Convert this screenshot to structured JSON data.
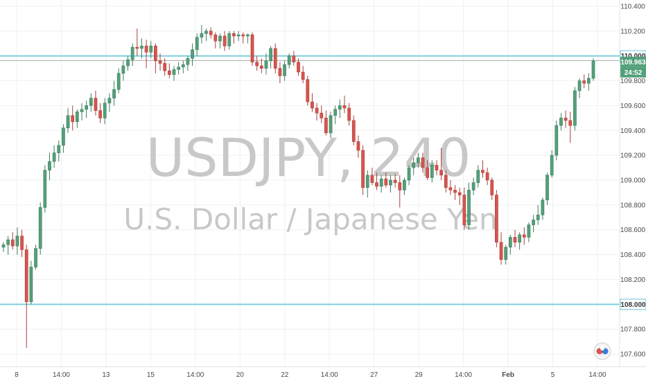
{
  "chart_data": {
    "type": "candlestick",
    "symbol": "USDJPY, 240",
    "description": "U.S. Dollar / Japanese Yen",
    "ylim": [
      107.5,
      110.45
    ],
    "y_ticks": [
      "110.400",
      "110.200",
      "110.000",
      "109.800",
      "109.600",
      "109.400",
      "109.200",
      "109.000",
      "108.800",
      "108.600",
      "108.400",
      "108.200",
      "108.000",
      "107.800",
      "107.600"
    ],
    "x_ticks": [
      "8",
      "14:00",
      "13",
      "15",
      "14:00",
      "20",
      "22",
      "14:00",
      "27",
      "29",
      "14:00",
      "Feb",
      "5",
      "14:00"
    ],
    "horizontal_lines": [
      110.0,
      108.0
    ],
    "last_price": "109.963",
    "countdown": "24:52",
    "level_labels": [
      "110.000",
      "108.000"
    ],
    "candles": [
      [
        108.46,
        108.5,
        108.42,
        108.48
      ],
      [
        108.48,
        108.55,
        108.4,
        108.52
      ],
      [
        108.52,
        108.58,
        108.44,
        108.47
      ],
      [
        108.47,
        108.62,
        108.4,
        108.55
      ],
      [
        108.55,
        108.6,
        108.38,
        108.44
      ],
      [
        108.44,
        108.48,
        107.65,
        108.02
      ],
      [
        108.02,
        108.35,
        108.0,
        108.3
      ],
      [
        108.3,
        108.48,
        108.28,
        108.45
      ],
      [
        108.45,
        108.82,
        108.4,
        108.78
      ],
      [
        108.78,
        109.12,
        108.74,
        109.08
      ],
      [
        109.08,
        109.22,
        109.0,
        109.15
      ],
      [
        109.15,
        109.28,
        109.1,
        109.22
      ],
      [
        109.22,
        109.32,
        109.15,
        109.28
      ],
      [
        109.28,
        109.45,
        109.22,
        109.42
      ],
      [
        109.42,
        109.58,
        109.38,
        109.52
      ],
      [
        109.52,
        109.6,
        109.4,
        109.47
      ],
      [
        109.47,
        109.57,
        109.42,
        109.55
      ],
      [
        109.55,
        109.62,
        109.48,
        109.57
      ],
      [
        109.57,
        109.64,
        109.5,
        109.6
      ],
      [
        109.6,
        109.7,
        109.55,
        109.66
      ],
      [
        109.66,
        109.72,
        109.52,
        109.56
      ],
      [
        109.56,
        109.62,
        109.46,
        109.5
      ],
      [
        109.5,
        109.66,
        109.45,
        109.62
      ],
      [
        109.62,
        109.7,
        109.55,
        109.66
      ],
      [
        109.66,
        109.8,
        109.6,
        109.73
      ],
      [
        109.73,
        109.9,
        109.7,
        109.86
      ],
      [
        109.86,
        109.96,
        109.8,
        109.92
      ],
      [
        109.92,
        110.0,
        109.88,
        109.97
      ],
      [
        109.97,
        110.1,
        109.92,
        110.07
      ],
      [
        110.07,
        110.22,
        110.0,
        110.06
      ],
      [
        110.06,
        110.14,
        109.98,
        110.08
      ],
      [
        110.08,
        110.13,
        109.9,
        110.03
      ],
      [
        110.03,
        110.12,
        109.98,
        110.08
      ],
      [
        110.08,
        110.1,
        109.86,
        109.96
      ],
      [
        109.96,
        110.02,
        109.88,
        109.94
      ],
      [
        109.94,
        109.98,
        109.84,
        109.88
      ],
      [
        109.88,
        109.94,
        109.82,
        109.85
      ],
      [
        109.85,
        109.92,
        109.8,
        109.89
      ],
      [
        109.89,
        109.95,
        109.85,
        109.91
      ],
      [
        109.91,
        109.96,
        109.86,
        109.93
      ],
      [
        109.93,
        110.0,
        109.88,
        109.98
      ],
      [
        109.98,
        110.1,
        109.92,
        110.05
      ],
      [
        110.05,
        110.18,
        110.0,
        110.15
      ],
      [
        110.15,
        110.25,
        110.1,
        110.18
      ],
      [
        110.18,
        110.22,
        110.12,
        110.2
      ],
      [
        110.2,
        110.23,
        110.14,
        110.17
      ],
      [
        110.17,
        110.19,
        110.06,
        110.12
      ],
      [
        110.12,
        110.18,
        110.06,
        110.16
      ],
      [
        110.16,
        110.2,
        110.04,
        110.08
      ],
      [
        110.08,
        110.2,
        110.05,
        110.18
      ],
      [
        110.18,
        110.2,
        110.1,
        110.16
      ],
      [
        110.16,
        110.2,
        110.12,
        110.17
      ],
      [
        110.17,
        110.19,
        110.1,
        110.16
      ],
      [
        110.16,
        110.18,
        110.1,
        110.17
      ],
      [
        110.17,
        110.19,
        109.92,
        109.95
      ],
      [
        109.95,
        110.0,
        109.88,
        109.92
      ],
      [
        109.92,
        109.98,
        109.86,
        109.9
      ],
      [
        109.9,
        110.02,
        109.85,
        109.96
      ],
      [
        109.96,
        110.08,
        109.9,
        110.06
      ],
      [
        110.06,
        110.1,
        109.86,
        109.9
      ],
      [
        109.9,
        109.95,
        109.78,
        109.84
      ],
      [
        109.84,
        109.96,
        109.8,
        109.93
      ],
      [
        109.93,
        110.02,
        109.9,
        110.0
      ],
      [
        110.0,
        110.04,
        109.92,
        109.95
      ],
      [
        109.95,
        109.98,
        109.84,
        109.87
      ],
      [
        109.87,
        109.92,
        109.78,
        109.81
      ],
      [
        109.81,
        109.84,
        109.6,
        109.63
      ],
      [
        109.63,
        109.7,
        109.55,
        109.58
      ],
      [
        109.58,
        109.62,
        109.48,
        109.54
      ],
      [
        109.54,
        109.6,
        109.46,
        109.5
      ],
      [
        109.5,
        109.56,
        109.36,
        109.38
      ],
      [
        109.38,
        109.55,
        109.34,
        109.52
      ],
      [
        109.52,
        109.6,
        109.45,
        109.57
      ],
      [
        109.57,
        109.65,
        109.5,
        109.6
      ],
      [
        109.6,
        109.68,
        109.54,
        109.58
      ],
      [
        109.58,
        109.62,
        109.44,
        109.48
      ],
      [
        109.48,
        109.52,
        109.28,
        109.31
      ],
      [
        109.31,
        109.36,
        109.18,
        109.24
      ],
      [
        109.24,
        109.28,
        108.88,
        108.94
      ],
      [
        108.94,
        109.08,
        108.86,
        109.04
      ],
      [
        109.04,
        109.1,
        108.96,
        108.98
      ],
      [
        108.98,
        109.06,
        108.92,
        108.95
      ],
      [
        108.95,
        109.04,
        108.9,
        109.01
      ],
      [
        109.01,
        109.06,
        108.94,
        108.96
      ],
      [
        108.96,
        109.04,
        108.9,
        109.0
      ],
      [
        109.0,
        109.05,
        108.94,
        108.98
      ],
      [
        108.98,
        109.04,
        108.78,
        108.92
      ],
      [
        108.92,
        109.02,
        108.88,
        109.0
      ],
      [
        109.0,
        109.12,
        108.96,
        109.1
      ],
      [
        109.1,
        109.18,
        109.04,
        109.14
      ],
      [
        109.14,
        109.22,
        109.1,
        109.18
      ],
      [
        109.18,
        109.22,
        109.06,
        109.1
      ],
      [
        109.1,
        109.16,
        109.0,
        109.02
      ],
      [
        109.02,
        109.16,
        108.98,
        109.12
      ],
      [
        109.12,
        109.16,
        109.04,
        109.08
      ],
      [
        109.08,
        109.26,
        109.0,
        109.04
      ],
      [
        109.04,
        109.08,
        108.9,
        108.94
      ],
      [
        108.94,
        109.0,
        108.88,
        108.92
      ],
      [
        108.92,
        108.96,
        108.84,
        108.9
      ],
      [
        108.9,
        108.94,
        108.8,
        108.88
      ],
      [
        108.88,
        108.94,
        108.6,
        108.64
      ],
      [
        108.64,
        108.98,
        108.6,
        108.92
      ],
      [
        108.92,
        109.02,
        108.88,
        108.98
      ],
      [
        108.98,
        109.12,
        108.94,
        109.08
      ],
      [
        109.08,
        109.16,
        109.02,
        109.06
      ],
      [
        109.06,
        109.1,
        108.96,
        109.0
      ],
      [
        109.0,
        109.02,
        108.84,
        108.88
      ],
      [
        108.88,
        108.92,
        108.46,
        108.5
      ],
      [
        108.5,
        108.58,
        108.32,
        108.36
      ],
      [
        108.36,
        108.48,
        108.32,
        108.46
      ],
      [
        108.46,
        108.56,
        108.4,
        108.54
      ],
      [
        108.54,
        108.6,
        108.46,
        108.5
      ],
      [
        108.5,
        108.58,
        108.44,
        108.56
      ],
      [
        108.56,
        108.62,
        108.48,
        108.54
      ],
      [
        108.54,
        108.66,
        108.5,
        108.64
      ],
      [
        108.64,
        108.72,
        108.58,
        108.68
      ],
      [
        108.68,
        108.8,
        108.64,
        108.72
      ],
      [
        108.72,
        108.86,
        108.68,
        108.84
      ],
      [
        108.84,
        109.06,
        108.8,
        109.04
      ],
      [
        109.04,
        109.24,
        109.02,
        109.2
      ],
      [
        109.2,
        109.48,
        109.16,
        109.44
      ],
      [
        109.44,
        109.54,
        109.4,
        109.5
      ],
      [
        109.5,
        109.56,
        109.42,
        109.48
      ],
      [
        109.48,
        109.55,
        109.3,
        109.44
      ],
      [
        109.44,
        109.75,
        109.4,
        109.72
      ],
      [
        109.72,
        109.82,
        109.66,
        109.8
      ],
      [
        109.8,
        109.85,
        109.74,
        109.78
      ],
      [
        109.78,
        109.86,
        109.72,
        109.82
      ],
      [
        109.82,
        109.98,
        109.8,
        109.96
      ]
    ]
  },
  "colors": {
    "up": "#53a07a",
    "down": "#d9544d",
    "level_line": "#7ecfdc",
    "grid": "#eef0f3",
    "axis_text": "#4a4a4a",
    "watermark": "#c8c8c8",
    "price_line": "#a8a8a8",
    "last_label_bg": "#53a07a"
  },
  "logo": {
    "icon": "tradingview-logo-icon"
  }
}
